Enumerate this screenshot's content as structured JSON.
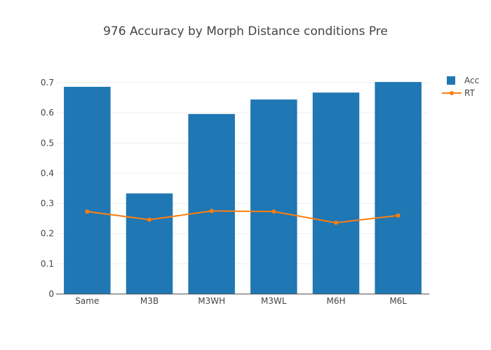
{
  "chart_data": {
    "type": "bar",
    "title": "976 Accuracy by Morph Distance conditions Pre",
    "categories": [
      "Same",
      "M3B",
      "M3WH",
      "M3WL",
      "M6H",
      "M6L"
    ],
    "series": [
      {
        "name": "Acc",
        "type": "bar",
        "color": "#1f77b4",
        "values": [
          0.686,
          0.333,
          0.596,
          0.644,
          0.667,
          0.702
        ]
      },
      {
        "name": "RT",
        "type": "line",
        "color": "#ff7f0e",
        "values": [
          0.273,
          0.246,
          0.275,
          0.273,
          0.236,
          0.26
        ]
      }
    ],
    "xlabel": "",
    "ylabel": "",
    "ylim": [
      0,
      0.7
    ],
    "yticks": [
      0,
      0.1,
      0.2,
      0.3,
      0.4,
      0.5,
      0.6,
      0.7
    ],
    "ytick_labels": [
      "0",
      "0.1",
      "0.2",
      "0.3",
      "0.4",
      "0.5",
      "0.6",
      "0.7"
    ],
    "grid": true,
    "legend_position": "top-right"
  }
}
